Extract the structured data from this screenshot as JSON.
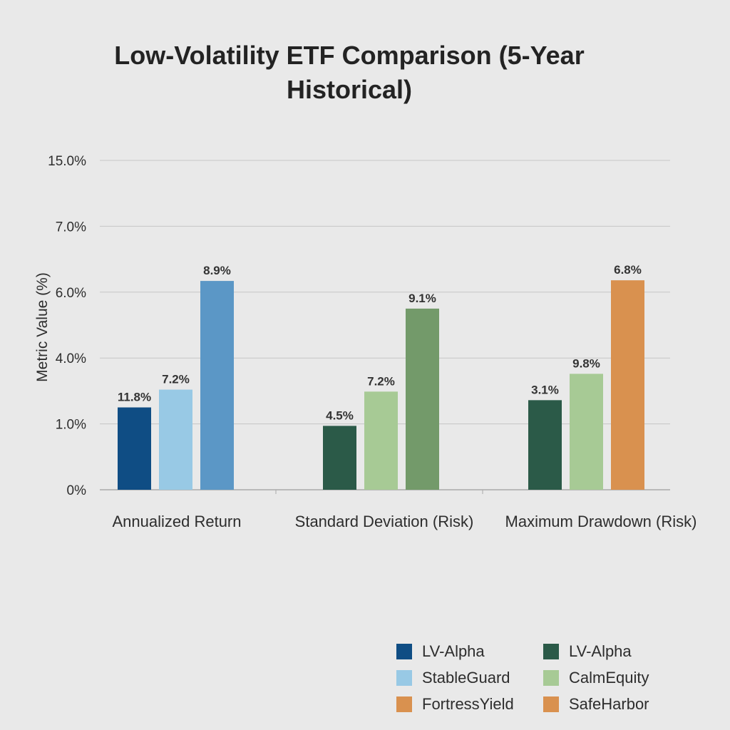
{
  "chart_data": {
    "type": "bar",
    "title_lines": [
      "Low-Volatility ETF Comparison (5-Year",
      "Historical)"
    ],
    "xlabel": "",
    "ylabel": "Metric Value (%)",
    "y_tick_labels": [
      "0%",
      "1.0%",
      "4.0%",
      "6.0%",
      "7.0%",
      "15.0%"
    ],
    "grid": true,
    "legend_position": "bottom-right",
    "groups": [
      {
        "label": "Annualized Return",
        "bars": [
          {
            "series": "LV-Alpha",
            "color": "#0f4d84",
            "label": "11.8%",
            "level": 1.25
          },
          {
            "series": "StableGuard",
            "color": "#98c9e5",
            "label": "7.2%",
            "level": 1.52
          },
          {
            "series": "",
            "color": "#5b97c6",
            "label": "8.9%",
            "level": 3.17
          }
        ]
      },
      {
        "label": "Standard Deviation (Risk)",
        "bars": [
          {
            "series": "LV-Alpha",
            "color": "#2b5a48",
            "label": "4.5%",
            "level": 0.97
          },
          {
            "series": "CalmEquity",
            "color": "#a7ca95",
            "label": "7.2%",
            "level": 1.49
          },
          {
            "series": "",
            "color": "#739a6a",
            "label": "9.1%",
            "level": 2.75
          }
        ]
      },
      {
        "label": "Maximum Drawdown (Risk)",
        "bars": [
          {
            "series": "LV-Alpha",
            "color": "#2b5a48",
            "label": "3.1%",
            "level": 1.36
          },
          {
            "series": "CalmEquity",
            "color": "#a7ca95",
            "label": "9.8%",
            "level": 1.76
          },
          {
            "series": "SafeHarbor",
            "color": "#d9914f",
            "label": "6.8%",
            "level": 3.18
          }
        ]
      }
    ],
    "legend": [
      {
        "name": "LV-Alpha",
        "color": "#0f4d84"
      },
      {
        "name": "LV-Alpha",
        "color": "#2b5a48"
      },
      {
        "name": "StableGuard",
        "color": "#98c9e5"
      },
      {
        "name": "CalmEquity",
        "color": "#a7ca95"
      },
      {
        "name": "FortressYield",
        "color": "#d9914f"
      },
      {
        "name": "SafeHarbor",
        "color": "#d9914f"
      }
    ]
  }
}
